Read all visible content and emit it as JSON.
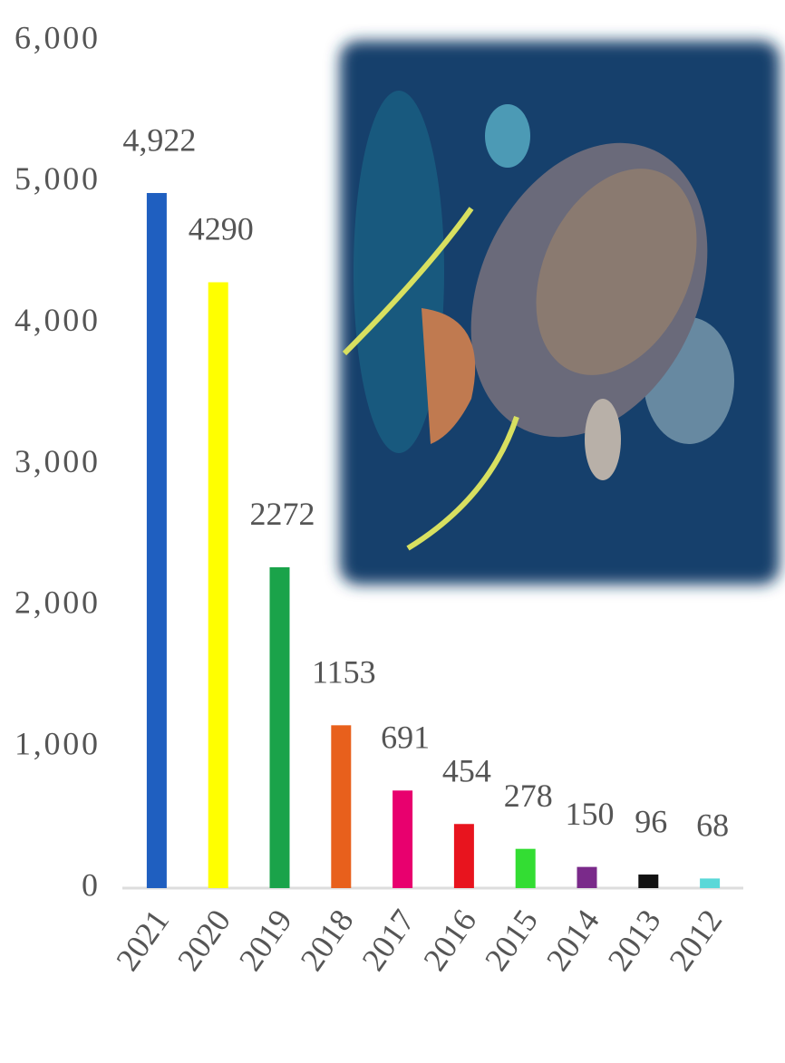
{
  "chart_data": {
    "type": "bar",
    "categories": [
      "2021",
      "2020",
      "2019",
      "2018",
      "2017",
      "2016",
      "2015",
      "2014",
      "2013",
      "2012"
    ],
    "values": [
      4922,
      4290,
      2272,
      1153,
      691,
      454,
      278,
      150,
      96,
      68
    ],
    "value_labels": [
      "4,922",
      "4290",
      "2272",
      "1153",
      "691",
      "454",
      "278",
      "150",
      "96",
      "68"
    ],
    "colors": [
      "#1f5fc0",
      "#ffff00",
      "#1aa34a",
      "#e8601c",
      "#e8006e",
      "#e8141e",
      "#33dd33",
      "#7a2a8a",
      "#111111",
      "#5ad8d8"
    ],
    "ylim": [
      0,
      6000
    ],
    "yticks": [
      0,
      {
        "value": 1000,
        "label": "1,000"
      },
      {
        "value": 2000,
        "label": "2,000"
      },
      {
        "value": 3000,
        "label": "3,000"
      },
      {
        "value": 4000,
        "label": "4,000"
      },
      {
        "value": 5000,
        "label": "5,000"
      },
      {
        "value": 6000,
        "label": "6,000"
      }
    ]
  }
}
